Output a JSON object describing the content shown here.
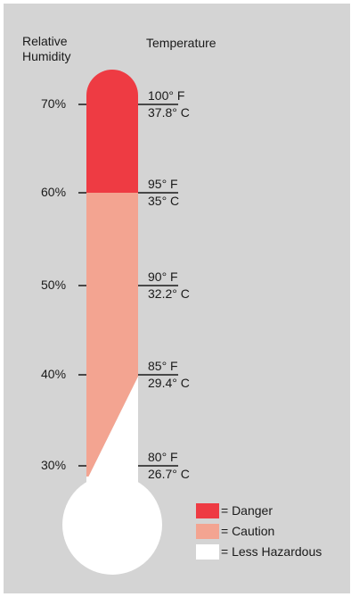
{
  "headers": {
    "humidity_line1": "Relative",
    "humidity_line2": "Humidity",
    "temperature": "Temperature"
  },
  "humidity_ticks": [
    "70%",
    "60%",
    "50%",
    "40%",
    "30%"
  ],
  "temperature_ticks": [
    {
      "f": "100° F",
      "c": "37.8° C"
    },
    {
      "f": "95° F",
      "c": "35° C"
    },
    {
      "f": "90° F",
      "c": "32.2° C"
    },
    {
      "f": "85° F",
      "c": "29.4° C"
    },
    {
      "f": "80° F",
      "c": "26.7° C"
    }
  ],
  "legend": [
    {
      "label": "= Danger",
      "color": "#ee3b43"
    },
    {
      "label": "= Caution",
      "color": "#f3a491"
    },
    {
      "label": "= Less Hazardous",
      "color": "#ffffff"
    }
  ],
  "colors": {
    "background": "#d4d4d4",
    "danger": "#ee3b43",
    "caution": "#f3a491",
    "less_hazardous": "#ffffff"
  }
}
